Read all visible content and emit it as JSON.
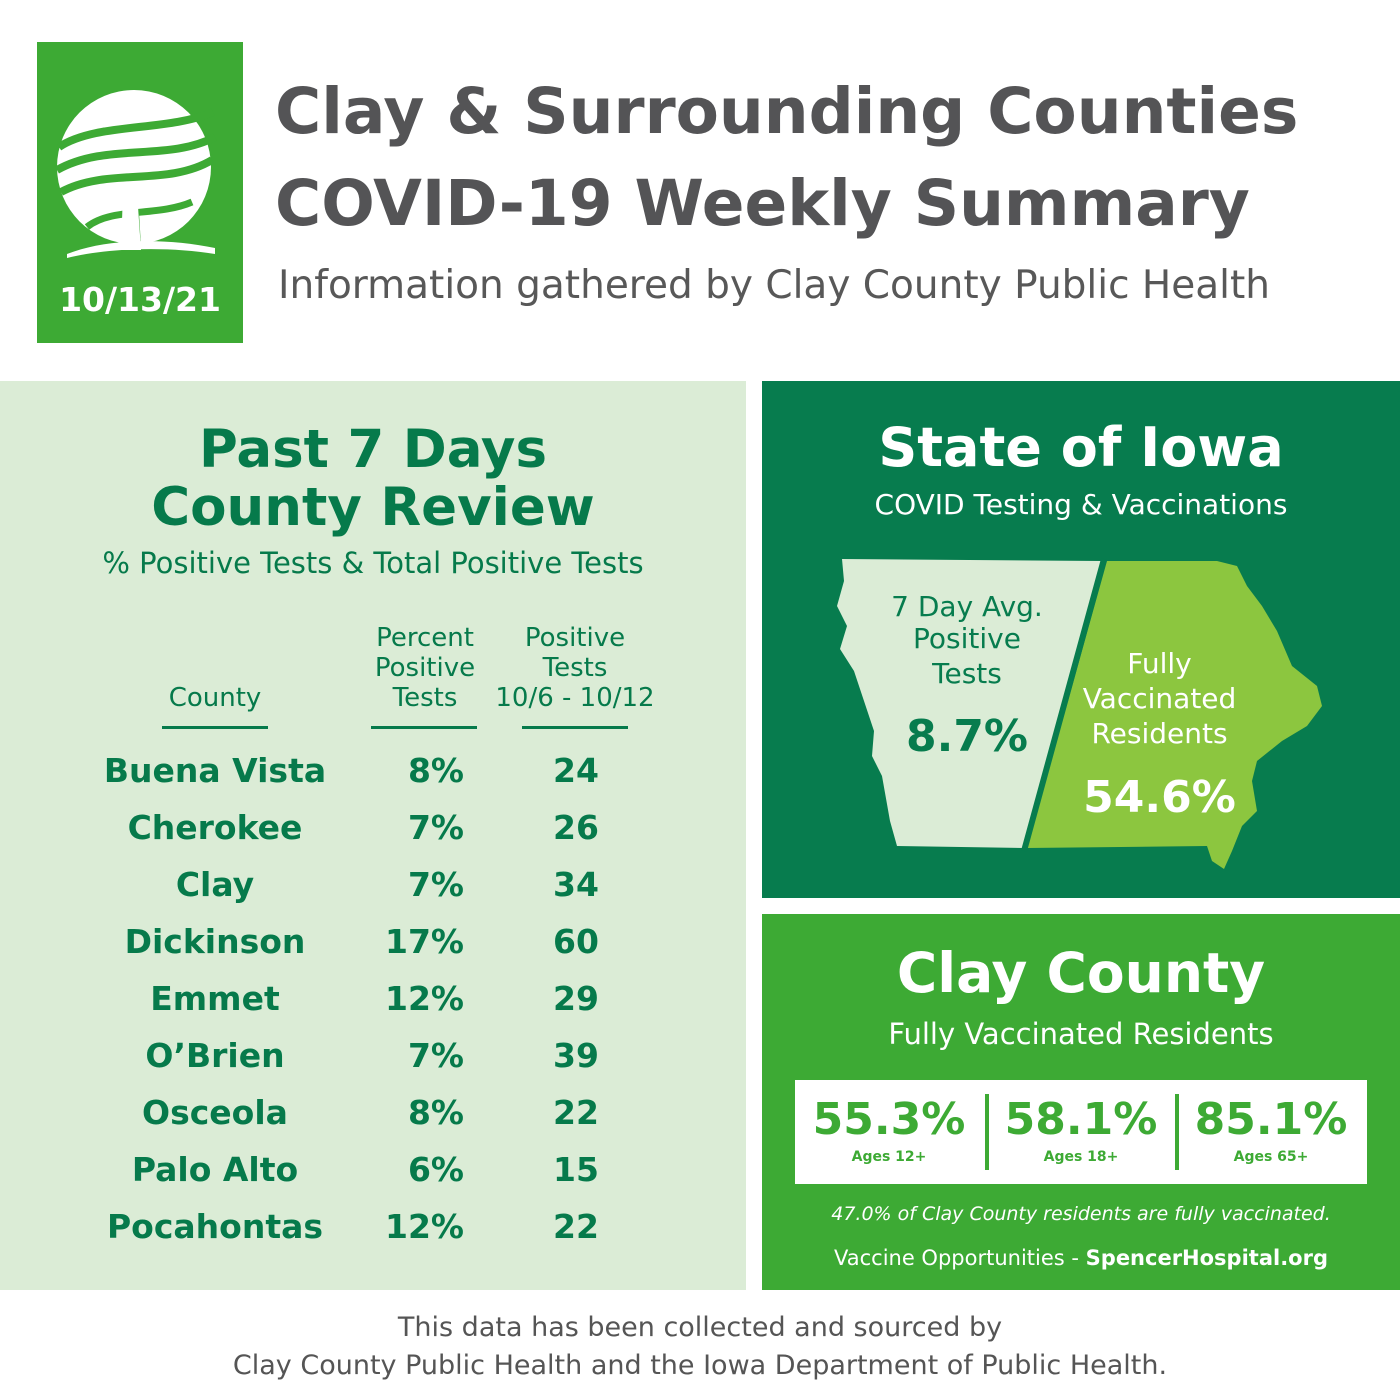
{
  "header": {
    "date": "10/13/21",
    "title_line1": "Clay & Surrounding Counties",
    "title_line2": "COVID-19 Weekly Summary",
    "subtitle": "Information gathered by Clay County Public Health"
  },
  "county_review": {
    "title_line1": "Past 7 Days",
    "title_line2": "County Review",
    "subtitle": "% Positive Tests & Total Positive Tests",
    "columns": {
      "county": "County",
      "percent_line1": "Percent",
      "percent_line2": "Positive",
      "percent_line3": "Tests",
      "positive_line1": "Positive",
      "positive_line2": "Tests",
      "positive_line3": "10/6 - 10/12"
    },
    "rows": [
      {
        "county": "Buena Vista",
        "percent": "8%",
        "positive": "24"
      },
      {
        "county": "Cherokee",
        "percent": "7%",
        "positive": "26"
      },
      {
        "county": "Clay",
        "percent": "7%",
        "positive": "34"
      },
      {
        "county": "Dickinson",
        "percent": "17%",
        "positive": "60"
      },
      {
        "county": "Emmet",
        "percent": "12%",
        "positive": "29"
      },
      {
        "county": "O’Brien",
        "percent": "7%",
        "positive": "39"
      },
      {
        "county": "Osceola",
        "percent": "8%",
        "positive": "22"
      },
      {
        "county": "Palo Alto",
        "percent": "6%",
        "positive": "15"
      },
      {
        "county": "Pocahontas",
        "percent": "12%",
        "positive": "22"
      }
    ]
  },
  "state": {
    "title": "State of Iowa",
    "subtitle": "COVID Testing & Vaccinations",
    "avg_line1": "7 Day Avg.",
    "avg_line2": "Positive",
    "avg_line3": "Tests",
    "avg_value": "8.7%",
    "vax_line1": "Fully",
    "vax_line2": "Vaccinated",
    "vax_line3": "Residents",
    "vax_value": "54.6%"
  },
  "clay": {
    "title": "Clay County",
    "subtitle": "Fully Vaccinated Residents",
    "stats": [
      {
        "value": "55.3%",
        "label": "Ages 12+"
      },
      {
        "value": "58.1%",
        "label": "Ages 18+"
      },
      {
        "value": "85.1%",
        "label": "Ages 65+"
      }
    ],
    "note": "47.0% of Clay County residents are fully vaccinated.",
    "opportunities_prefix": "Vaccine Opportunities - ",
    "opportunities_link": "SpencerHospital.org"
  },
  "footer": {
    "line1": "This data has been collected and sourced by",
    "line2": "Clay County Public Health and the Iowa Department of Public Health."
  },
  "colors": {
    "bright_green": "#3daa34",
    "dark_green": "#077c4e",
    "light_green_bg": "#dbecd6",
    "lime": "#8cc63f",
    "title_gray": "#545456"
  }
}
